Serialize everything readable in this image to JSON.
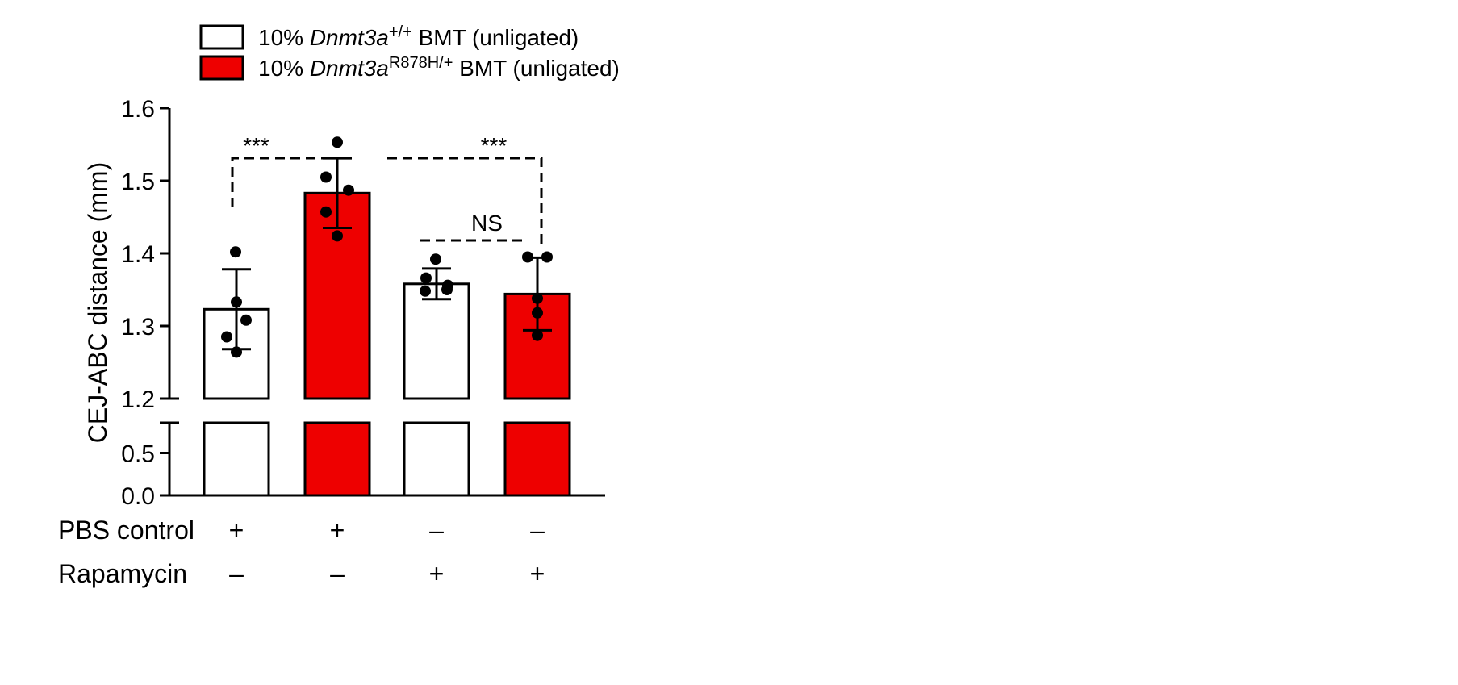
{
  "chart_data": {
    "type": "bar",
    "title": "",
    "ylabel": "CEJ-ABC distance (mm)",
    "ylim": [
      0,
      1.6
    ],
    "y_axis_break": [
      0.8,
      1.2
    ],
    "yticks_lower": [
      "0.0",
      "0.5"
    ],
    "yticks_upper": [
      "1.2",
      "1.3",
      "1.4",
      "1.5",
      "1.6"
    ],
    "legend": {
      "placement": "top",
      "entries": [
        {
          "prefix": "10% ",
          "gene": "Dnmt3a",
          "sup": "+/+",
          "suffix": " BMT (unligated)",
          "fill": "#ffffff"
        },
        {
          "prefix": "10% ",
          "gene": "Dnmt3a",
          "sup": "R878H/+",
          "suffix": " BMT (unligated)",
          "fill": "#ee0000"
        }
      ]
    },
    "bars": [
      {
        "genotype": "+/+",
        "mean": 1.323,
        "sd": 0.055,
        "points": [
          1.402,
          1.333,
          1.308,
          1.285,
          1.264
        ],
        "fill": "#ffffff"
      },
      {
        "genotype": "R878H/+",
        "mean": 1.483,
        "sd": 0.048,
        "points": [
          1.553,
          1.505,
          1.487,
          1.457,
          1.424
        ],
        "fill": "#ee0000"
      },
      {
        "genotype": "+/+",
        "mean": 1.358,
        "sd": 0.021,
        "points": [
          1.392,
          1.366,
          1.356,
          1.35,
          1.348
        ],
        "fill": "#ffffff"
      },
      {
        "genotype": "R878H/+",
        "mean": 1.344,
        "sd": 0.05,
        "points": [
          1.395,
          1.395,
          1.338,
          1.318,
          1.287
        ],
        "fill": "#ee0000"
      }
    ],
    "significance": [
      {
        "from": 0,
        "to": 1,
        "label": "***"
      },
      {
        "from": 2,
        "to": 3,
        "label": "NS"
      },
      {
        "from": 1,
        "to": 3,
        "label": "***"
      }
    ],
    "conditions": [
      {
        "label": "PBS control",
        "values": [
          "+",
          "+",
          "–",
          "–"
        ]
      },
      {
        "label": "Rapamycin",
        "values": [
          "–",
          "–",
          "+",
          "+"
        ]
      }
    ],
    "grid": false
  }
}
